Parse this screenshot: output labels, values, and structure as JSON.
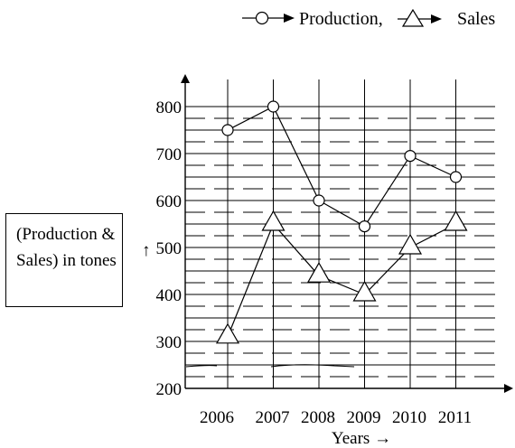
{
  "chart_data": {
    "type": "line",
    "categories": [
      "2006",
      "2007",
      "2008",
      "2009",
      "2010",
      "2011"
    ],
    "series": [
      {
        "name": "Production,",
        "marker": "circle",
        "values": [
          750,
          800,
          600,
          545,
          695,
          650
        ]
      },
      {
        "name": "Sales",
        "marker": "triangle",
        "values": [
          310,
          550,
          440,
          400,
          500,
          550
        ]
      }
    ],
    "ylabel": "(Production & Sales) in tones",
    "ylabel_prefix": "↑",
    "xlabel": "Years →",
    "ylim": [
      200,
      800
    ],
    "yticks": [
      200,
      300,
      400,
      500,
      600,
      700,
      800
    ],
    "grid": true,
    "legend_position": "top-right"
  }
}
